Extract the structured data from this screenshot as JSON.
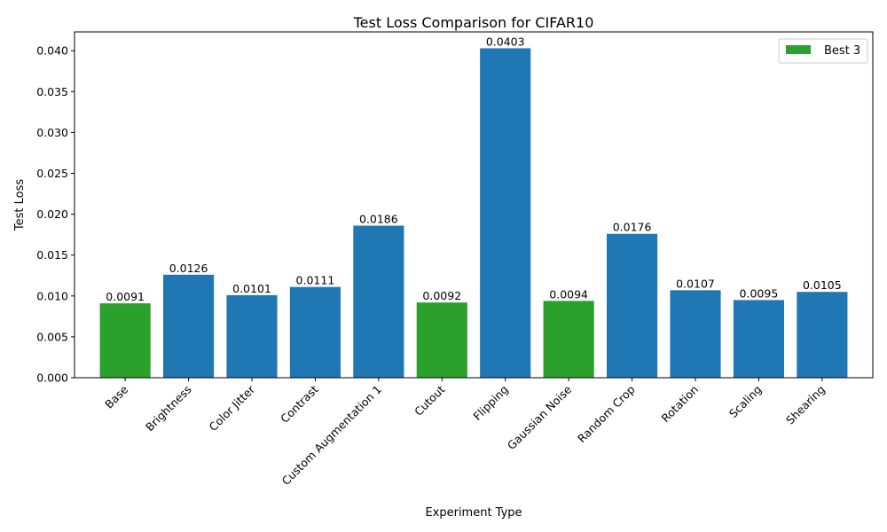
{
  "chart_data": {
    "type": "bar",
    "title": "Test Loss Comparison for CIFAR10",
    "xlabel": "Experiment Type",
    "ylabel": "Test Loss",
    "ylim": [
      0,
      0.0423
    ],
    "yticks": [
      0.0,
      0.005,
      0.01,
      0.015,
      0.02,
      0.025,
      0.03,
      0.035,
      0.04
    ],
    "ytick_labels": [
      "0.000",
      "0.005",
      "0.010",
      "0.015",
      "0.020",
      "0.025",
      "0.030",
      "0.035",
      "0.040"
    ],
    "categories": [
      "Base",
      "Brightness",
      "Color Jitter",
      "Contrast",
      "Custom Augmentation 1",
      "Cutout",
      "Flipping",
      "Gaussian Noise",
      "Random Crop",
      "Rotation",
      "Scaling",
      "Shearing"
    ],
    "values": [
      0.0091,
      0.0126,
      0.0101,
      0.0111,
      0.0186,
      0.0092,
      0.0403,
      0.0094,
      0.0176,
      0.0107,
      0.0095,
      0.0105
    ],
    "value_labels": [
      "0.0091",
      "0.0126",
      "0.0101",
      "0.0111",
      "0.0186",
      "0.0092",
      "0.0403",
      "0.0094",
      "0.0176",
      "0.0107",
      "0.0095",
      "0.0105"
    ],
    "highlight": [
      true,
      false,
      false,
      false,
      false,
      true,
      false,
      true,
      false,
      false,
      false,
      false
    ],
    "colors": {
      "default": "#1f77b4",
      "highlight": "#2ca02c"
    },
    "legend": {
      "label": "Best 3",
      "position": "top-right"
    },
    "grid": false
  }
}
